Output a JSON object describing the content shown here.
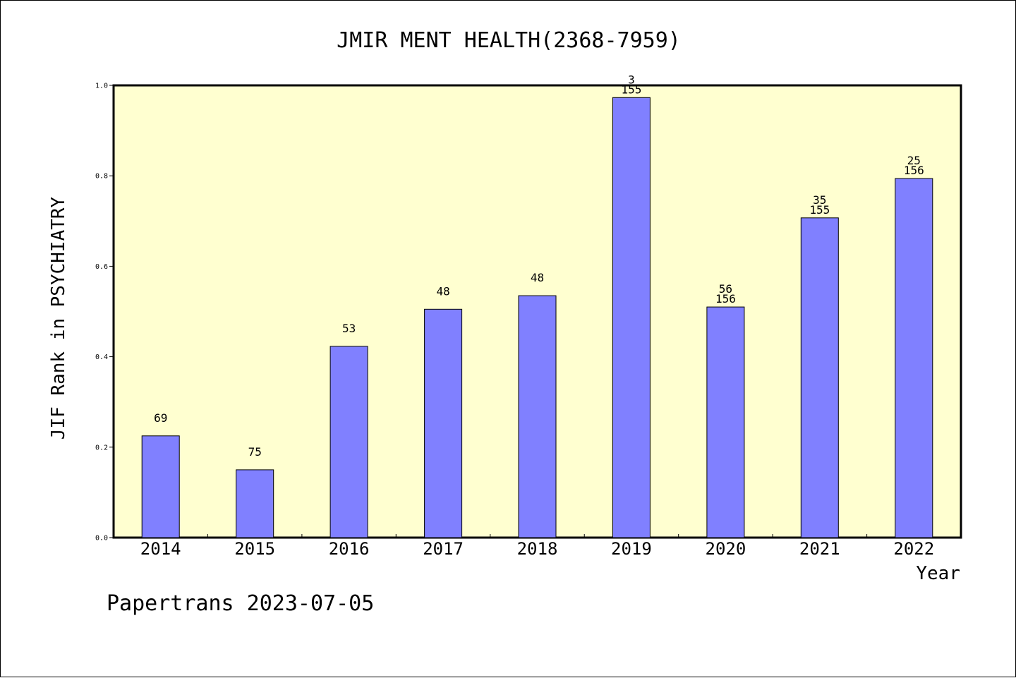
{
  "chart_data": {
    "type": "bar",
    "title": "JMIR MENT HEALTH(2368-7959)",
    "xlabel": "Year",
    "ylabel": "JIF Rank in PSYCHIATRY",
    "ylim": [
      0,
      1.0
    ],
    "yticks": [
      "0.0",
      "0.2",
      "0.4",
      "0.6",
      "0.8",
      "1.0"
    ],
    "grid": false,
    "categories": [
      "2014",
      "2015",
      "2016",
      "2017",
      "2018",
      "2019",
      "2020",
      "2021",
      "2022"
    ],
    "values": [
      0.225,
      0.15,
      0.423,
      0.505,
      0.535,
      0.973,
      0.51,
      0.707,
      0.794
    ],
    "bar_labels": [
      [
        "69"
      ],
      [
        "75"
      ],
      [
        "53"
      ],
      [
        "48"
      ],
      [
        "48"
      ],
      [
        "3",
        "155"
      ],
      [
        "56",
        "156"
      ],
      [
        "35",
        "155"
      ],
      [
        "25",
        "156"
      ]
    ],
    "colors": {
      "bar": "#8080ff",
      "plot_background": "#ffffd0"
    }
  },
  "footer": "Papertrans 2023-07-05"
}
